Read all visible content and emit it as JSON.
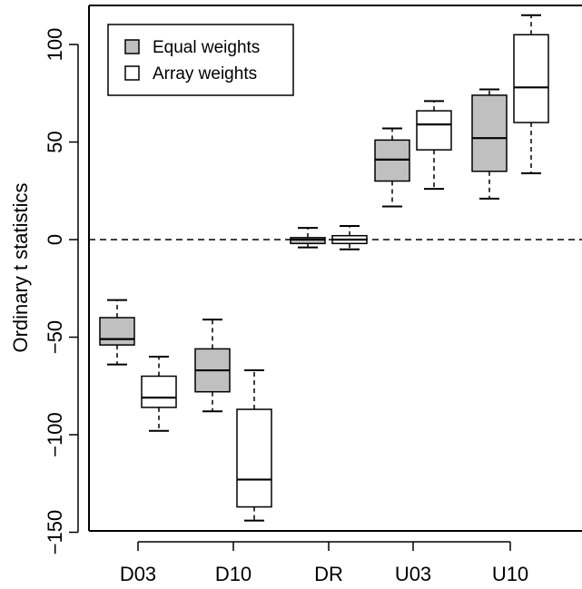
{
  "chart_data": {
    "type": "boxplot",
    "title": "",
    "xlabel": "",
    "ylabel": "Ordinary t statistics",
    "ylim": [
      -150,
      120
    ],
    "yticks": [
      -150,
      -100,
      -50,
      0,
      50,
      100
    ],
    "categories": [
      "D03",
      "D10",
      "DR",
      "U03",
      "U10"
    ],
    "reference_line": {
      "y": 0,
      "style": "dashed"
    },
    "legend": {
      "position": "top-left"
    },
    "series": [
      {
        "name": "Equal weights",
        "color": "#c0c0c0",
        "boxes": [
          {
            "category": "D03",
            "min": -64,
            "q1": -54,
            "median": -51,
            "q3": -40,
            "max": -31
          },
          {
            "category": "D10",
            "min": -88,
            "q1": -78,
            "median": -67,
            "q3": -56,
            "max": -41
          },
          {
            "category": "DR",
            "min": -4,
            "q1": -2,
            "median": 0,
            "q3": 1,
            "max": 6
          },
          {
            "category": "U03",
            "min": 17,
            "q1": 30,
            "median": 41,
            "q3": 51,
            "max": 57
          },
          {
            "category": "U10",
            "min": 21,
            "q1": 35,
            "median": 52,
            "q3": 74,
            "max": 77
          }
        ]
      },
      {
        "name": "Array weights",
        "color": "#ffffff",
        "boxes": [
          {
            "category": "D03",
            "min": -98,
            "q1": -86,
            "median": -81,
            "q3": -70,
            "max": -60
          },
          {
            "category": "D10",
            "min": -144,
            "q1": -137,
            "median": -123,
            "q3": -87,
            "max": -67
          },
          {
            "category": "DR",
            "min": -5,
            "q1": -2,
            "median": 0,
            "q3": 2,
            "max": 7
          },
          {
            "category": "U03",
            "min": 26,
            "q1": 46,
            "median": 59,
            "q3": 66,
            "max": 71
          },
          {
            "category": "U10",
            "min": 34,
            "q1": 60,
            "median": 78,
            "q3": 105,
            "max": 115
          }
        ]
      }
    ]
  }
}
